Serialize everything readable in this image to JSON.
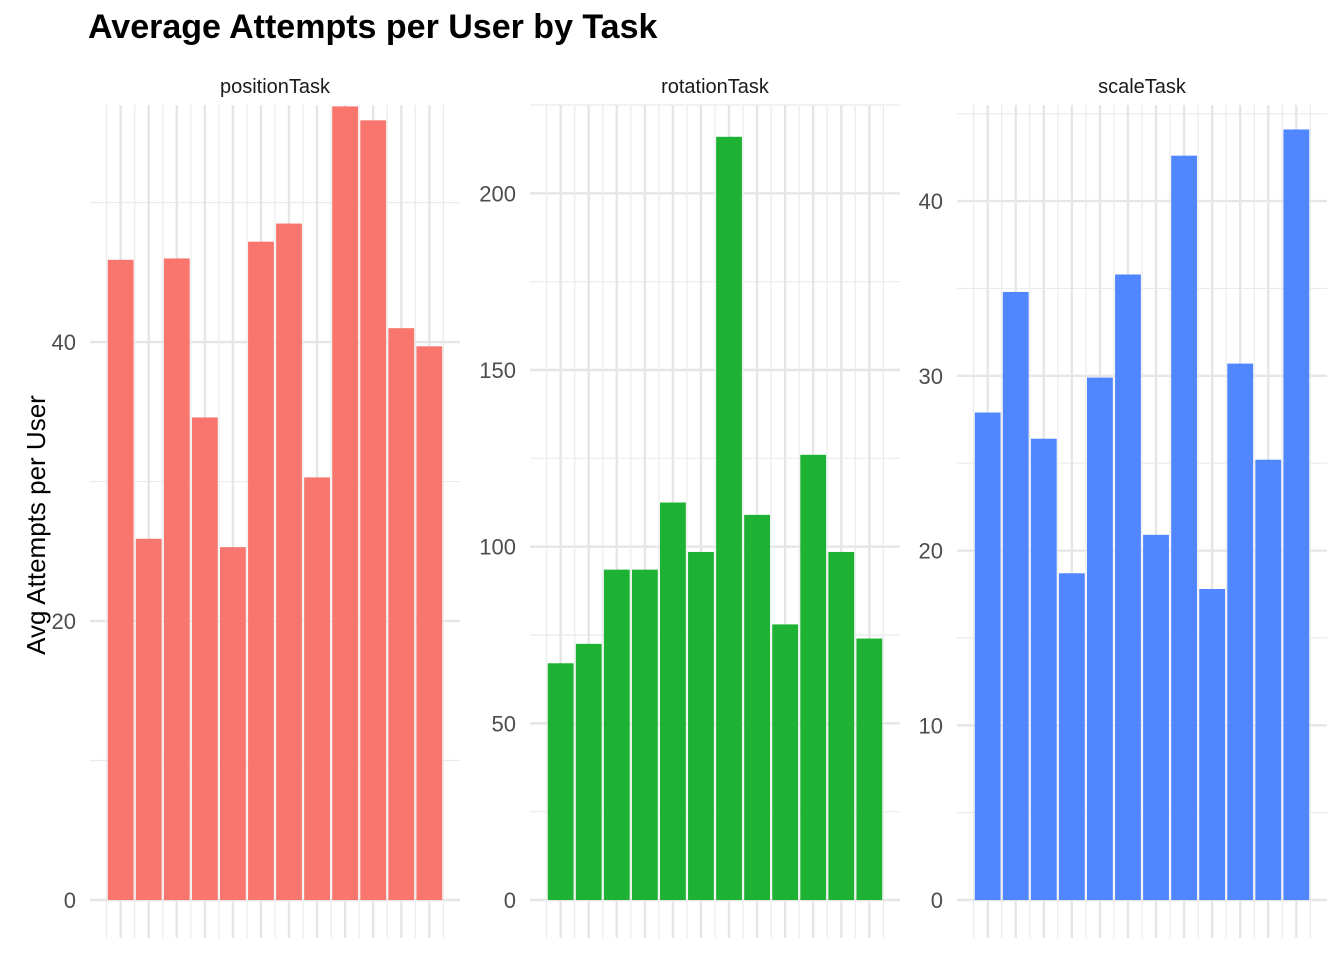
{
  "chart_data": {
    "type": "bar",
    "title": "Average Attempts per User by Task",
    "ylabel": "Avg Attempts per User",
    "xlabel": "",
    "grid": true,
    "legend": "none",
    "panels": [
      {
        "name": "positionTask",
        "color": "#F8766D",
        "ylim": [
          0,
          57
        ],
        "y_ticks": [
          0,
          20,
          40
        ],
        "values": [
          45.9,
          25.9,
          46.0,
          34.6,
          25.3,
          47.2,
          48.5,
          30.3,
          56.9,
          55.9,
          41.0,
          39.7
        ]
      },
      {
        "name": "rotationTask",
        "color": "#1DB233",
        "ylim": [
          0,
          225
        ],
        "y_ticks": [
          0,
          50,
          100,
          150,
          200
        ],
        "values": [
          67,
          72.5,
          93.5,
          93.5,
          112.5,
          98.5,
          216,
          109,
          78,
          126,
          98.5,
          74
        ]
      },
      {
        "name": "scaleTask",
        "color": "#5086FF",
        "ylim": [
          0,
          45.5
        ],
        "y_ticks": [
          0,
          10,
          20,
          30,
          40
        ],
        "values": [
          27.9,
          34.8,
          26.4,
          18.7,
          29.9,
          35.8,
          20.9,
          42.6,
          17.8,
          30.7,
          25.2,
          44.1
        ]
      }
    ]
  }
}
